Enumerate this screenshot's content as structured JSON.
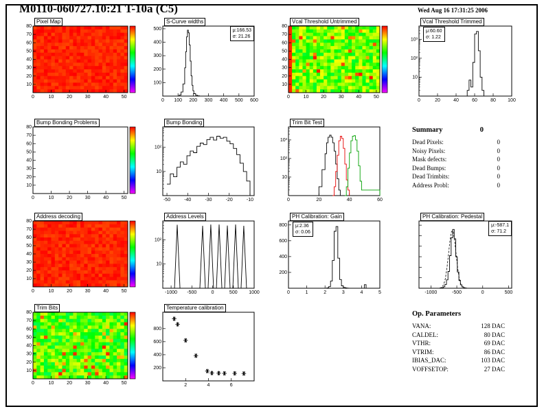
{
  "page": {
    "title": "M0110-060727.10:21 T-10a (C5)",
    "timestamp": "Wed Aug 16 17:31:25 2006"
  },
  "palette": [
    "#ff0000",
    "#ffff00",
    "#00ff00",
    "#00ffff",
    "#0000ff",
    "#ff00ff"
  ],
  "summary": {
    "title": "Summary",
    "value": "0",
    "rows": [
      {
        "label": "Dead Pixels:",
        "value": "0"
      },
      {
        "label": "Noisy Pixels:",
        "value": "0"
      },
      {
        "label": "Mask defects:",
        "value": "0"
      },
      {
        "label": "Dead Bumps:",
        "value": "0"
      },
      {
        "label": "Dead Trimbits:",
        "value": "0"
      },
      {
        "label": "Address Probl:",
        "value": "0"
      }
    ]
  },
  "op_parameters": {
    "title": "Op. Parameters",
    "rows": [
      {
        "label": "VANA:",
        "value": "128 DAC"
      },
      {
        "label": "CALDEL:",
        "value": "80 DAC"
      },
      {
        "label": "VTHR:",
        "value": "69 DAC"
      },
      {
        "label": "VTRIM:",
        "value": "86 DAC"
      },
      {
        "label": "IBIAS_DAC:",
        "value": "103 DAC"
      },
      {
        "label": "VOFFSETOP:",
        "value": "27 DAC"
      }
    ]
  },
  "chart_data": [
    {
      "id": "pixel-map",
      "type": "heatmap",
      "title": "Pixel Map",
      "variant": "solid-red",
      "xlim": [
        0,
        52
      ],
      "ylim": [
        0,
        80
      ],
      "x_ticks": [
        0,
        10,
        20,
        30,
        40,
        50
      ],
      "y_ticks": [
        10,
        20,
        30,
        40,
        50,
        60,
        70,
        80
      ],
      "colorbar": true
    },
    {
      "id": "s-curve-widths",
      "type": "hist",
      "title": "S-Curve widths",
      "stats": [
        "μ:166.53",
        "σ: 21.26"
      ],
      "xlim": [
        0,
        600
      ],
      "x_ticks": [
        0,
        100,
        200,
        300,
        400,
        500,
        600
      ],
      "yscale": "linear",
      "ylim": [
        0,
        520
      ],
      "y_ticks": [
        100,
        200,
        300,
        400,
        500
      ],
      "color": "#000000",
      "bins": [
        [
          96,
          0
        ],
        [
          108,
          8
        ],
        [
          120,
          30
        ],
        [
          132,
          90
        ],
        [
          144,
          210
        ],
        [
          150,
          330
        ],
        [
          156,
          440
        ],
        [
          162,
          490
        ],
        [
          168,
          470
        ],
        [
          174,
          380
        ],
        [
          180,
          260
        ],
        [
          186,
          150
        ],
        [
          192,
          80
        ],
        [
          198,
          40
        ],
        [
          204,
          18
        ],
        [
          216,
          6
        ],
        [
          228,
          2
        ],
        [
          240,
          0
        ]
      ]
    },
    {
      "id": "vcal-threshold-untrimmed",
      "type": "heatmap",
      "title": "Vcal Threshold Untrimmed",
      "variant": "noisy",
      "xlim": [
        0,
        52
      ],
      "ylim": [
        0,
        80
      ],
      "x_ticks": [
        0,
        10,
        20,
        30,
        40,
        50
      ],
      "y_ticks": [
        10,
        20,
        30,
        40,
        50,
        60,
        70,
        80
      ],
      "colorbar": true
    },
    {
      "id": "vcal-threshold-trimmed",
      "type": "hist",
      "title": "Vcal Threshold Trimmed",
      "stats": [
        "μ:60.60",
        "σ: 1.22"
      ],
      "xlim": [
        0,
        100
      ],
      "x_ticks": [
        0,
        20,
        40,
        60,
        80,
        100
      ],
      "yscale": "log",
      "ylim": [
        1,
        5000
      ],
      "y_ticks": [
        10,
        100,
        1000
      ],
      "y_tick_labels": [
        "10",
        "10²",
        "10³"
      ],
      "color": "#000000",
      "bins": [
        [
          48,
          0
        ],
        [
          52,
          2
        ],
        [
          54,
          7
        ],
        [
          56,
          3
        ],
        [
          58,
          60
        ],
        [
          60,
          1900
        ],
        [
          62,
          2600
        ],
        [
          64,
          250
        ],
        [
          66,
          10
        ],
        [
          68,
          2
        ],
        [
          70,
          0
        ]
      ]
    },
    {
      "id": "bump-bonding-problems",
      "type": "heatmap",
      "title": "Bump Bonding Problems",
      "variant": "empty",
      "xlim": [
        0,
        52
      ],
      "ylim": [
        0,
        80
      ],
      "x_ticks": [
        0,
        10,
        20,
        30,
        40,
        50
      ],
      "y_ticks": [
        10,
        20,
        30,
        40,
        50,
        60,
        70,
        80
      ],
      "colorbar": true
    },
    {
      "id": "bump-bonding",
      "type": "hist",
      "title": "Bump Bonding",
      "xlim": [
        -52,
        -8
      ],
      "x_ticks": [
        -50,
        -40,
        -30,
        -20,
        -10
      ],
      "yscale": "log",
      "ylim": [
        1,
        700
      ],
      "y_ticks": [
        10,
        100
      ],
      "y_tick_labels": [
        "10",
        "10²"
      ],
      "color": "#000000",
      "bins": [
        [
          -50,
          3
        ],
        [
          -48.4,
          8
        ],
        [
          -46.8,
          6
        ],
        [
          -45.2,
          15
        ],
        [
          -43.6,
          25
        ],
        [
          -42,
          20
        ],
        [
          -40.4,
          45
        ],
        [
          -38.8,
          70
        ],
        [
          -37.2,
          60
        ],
        [
          -35.6,
          110
        ],
        [
          -34,
          150
        ],
        [
          -32.4,
          130
        ],
        [
          -30.8,
          210
        ],
        [
          -29.2,
          260
        ],
        [
          -27.6,
          200
        ],
        [
          -26,
          290
        ],
        [
          -24.4,
          240
        ],
        [
          -22.8,
          260
        ],
        [
          -21.2,
          180
        ],
        [
          -19.6,
          140
        ],
        [
          -18,
          90
        ],
        [
          -16.4,
          50
        ],
        [
          -14.8,
          22
        ],
        [
          -13.2,
          10
        ],
        [
          -11.6,
          4
        ],
        [
          -10,
          0
        ]
      ]
    },
    {
      "id": "trim-bit-test",
      "type": "multihist",
      "title": "Trim Bit Test",
      "xlim": [
        0,
        60
      ],
      "x_ticks": [
        0,
        20,
        40,
        60
      ],
      "yscale": "log",
      "ylim": [
        1,
        5000
      ],
      "y_ticks": [
        10,
        100,
        1000
      ],
      "y_tick_labels": [
        "10",
        "10²",
        "10³"
      ],
      "series": [
        {
          "name": "trim-hist-black",
          "color": "#000000",
          "bins": [
            [
              18,
              0
            ],
            [
              20,
              3
            ],
            [
              22,
              25
            ],
            [
              24,
              180
            ],
            [
              25,
              700
            ],
            [
              26,
              1400
            ],
            [
              27,
              1800
            ],
            [
              28,
              1400
            ],
            [
              29,
              700
            ],
            [
              30,
              250
            ],
            [
              31,
              50
            ],
            [
              32,
              8
            ],
            [
              33,
              2
            ],
            [
              34,
              0
            ]
          ]
        },
        {
          "name": "trim-hist-red",
          "color": "#e60000",
          "bins": [
            [
              29,
              0
            ],
            [
              30,
              3
            ],
            [
              31,
              20
            ],
            [
              32,
              150
            ],
            [
              33,
              900
            ],
            [
              34,
              1600
            ],
            [
              35,
              1200
            ],
            [
              36,
              350
            ],
            [
              37,
              50
            ],
            [
              38,
              7
            ],
            [
              39,
              2
            ],
            [
              40,
              0
            ]
          ]
        },
        {
          "name": "trim-hist-green",
          "color": "#00a000",
          "bins": [
            [
              37,
              0
            ],
            [
              38,
              3
            ],
            [
              39,
              30
            ],
            [
              40,
              200
            ],
            [
              41,
              900
            ],
            [
              42,
              1600
            ],
            [
              43,
              1700
            ],
            [
              44,
              1000
            ],
            [
              45,
              250
            ],
            [
              46,
              40
            ],
            [
              47,
              6
            ],
            [
              48,
              2
            ],
            [
              60,
              0
            ]
          ]
        }
      ]
    },
    {
      "id": "address-decoding",
      "type": "heatmap",
      "title": "Address decoding",
      "variant": "solid-red",
      "xlim": [
        0,
        52
      ],
      "ylim": [
        0,
        80
      ],
      "x_ticks": [
        0,
        10,
        20,
        30,
        40,
        50
      ],
      "y_ticks": [
        10,
        20,
        30,
        40,
        50,
        60,
        70,
        80
      ],
      "colorbar": true
    },
    {
      "id": "address-levels",
      "type": "spikes",
      "title": "Address Levels",
      "xlim": [
        -1200,
        1000
      ],
      "x_ticks": [
        -1000,
        -500,
        0,
        500,
        1000
      ],
      "yscale": "log",
      "ylim": [
        1,
        600
      ],
      "y_ticks": [
        10,
        100
      ],
      "y_tick_labels": [
        "10",
        "10²"
      ],
      "spikes": [
        [
          -852,
          420
        ],
        [
          -241,
          380
        ],
        [
          -43,
          430
        ],
        [
          157,
          430
        ],
        [
          355,
          390
        ],
        [
          553,
          430
        ],
        [
          751,
          380
        ]
      ]
    },
    {
      "id": "ph-calibration-gain",
      "type": "hist",
      "title": "PH Calibration: Gain",
      "stats": [
        "μ:2.36",
        "σ: 0.06"
      ],
      "xlim": [
        0,
        5
      ],
      "x_ticks": [
        0,
        1,
        2,
        3,
        4,
        5
      ],
      "yscale": "linear",
      "ylim": [
        0,
        850
      ],
      "y_ticks": [
        200,
        400,
        600,
        800
      ],
      "color": "#000000",
      "bins": [
        [
          2.0,
          0
        ],
        [
          2.1,
          4
        ],
        [
          2.2,
          20
        ],
        [
          2.3,
          90
        ],
        [
          2.4,
          350
        ],
        [
          2.5,
          720
        ],
        [
          2.6,
          780
        ],
        [
          2.7,
          380
        ],
        [
          2.8,
          110
        ],
        [
          2.9,
          30
        ],
        [
          3.0,
          10
        ],
        [
          3.1,
          4
        ],
        [
          3.2,
          2
        ],
        [
          3.3,
          0
        ],
        [
          4.1,
          0
        ],
        [
          4.15,
          45
        ],
        [
          4.25,
          0
        ]
      ]
    },
    {
      "id": "ph-calibration-pedestal",
      "type": "hist",
      "title": "PH Calibration: Pedestal",
      "stats": [
        "μ:-587.1",
        "σ: 71.2"
      ],
      "xlim": [
        -1230,
        560
      ],
      "x_ticks": [
        -1000,
        -500,
        0,
        500
      ],
      "yscale": "linear",
      "ylim": [
        0,
        640
      ],
      "y_ticks": [
        100,
        200,
        300,
        400,
        500,
        600
      ],
      "y_labels_hidden": true,
      "color": "#000000",
      "bins": [
        [
          -850,
          0
        ],
        [
          -820,
          2
        ],
        [
          -790,
          6
        ],
        [
          -760,
          14
        ],
        [
          -730,
          35
        ],
        [
          -700,
          80
        ],
        [
          -670,
          160
        ],
        [
          -640,
          310
        ],
        [
          -610,
          480
        ],
        [
          -580,
          560
        ],
        [
          -550,
          470
        ],
        [
          -520,
          300
        ],
        [
          -490,
          155
        ],
        [
          -460,
          75
        ],
        [
          -430,
          32
        ],
        [
          -400,
          13
        ],
        [
          -370,
          5
        ],
        [
          -340,
          2
        ],
        [
          -310,
          0
        ]
      ],
      "fit": {
        "mean": -587,
        "sigma": 71,
        "amp": 555
      }
    },
    {
      "id": "trim-bits",
      "type": "heatmap",
      "title": "Trim Bits",
      "variant": "noisy-trim",
      "xlim": [
        0,
        52
      ],
      "ylim": [
        0,
        80
      ],
      "x_ticks": [
        0,
        10,
        20,
        30,
        40,
        50
      ],
      "y_ticks": [
        10,
        20,
        30,
        40,
        50,
        60,
        70,
        80
      ],
      "colorbar": true
    },
    {
      "id": "temperature-calibration",
      "type": "scatter",
      "title": "Temperature calibration",
      "xlim": [
        0,
        8
      ],
      "x_ticks": [
        2,
        4,
        6
      ],
      "yscale": "linear",
      "ylim": [
        0,
        1050
      ],
      "y_ticks": [
        200,
        400,
        600,
        800
      ],
      "marker": "*",
      "points": [
        [
          1.0,
          950
        ],
        [
          1.3,
          865
        ],
        [
          2.0,
          620
        ],
        [
          2.9,
          385
        ],
        [
          3.9,
          150
        ],
        [
          4.3,
          120
        ],
        [
          4.9,
          118
        ],
        [
          5.4,
          115
        ],
        [
          6.3,
          115
        ],
        [
          7.1,
          113
        ]
      ]
    }
  ]
}
